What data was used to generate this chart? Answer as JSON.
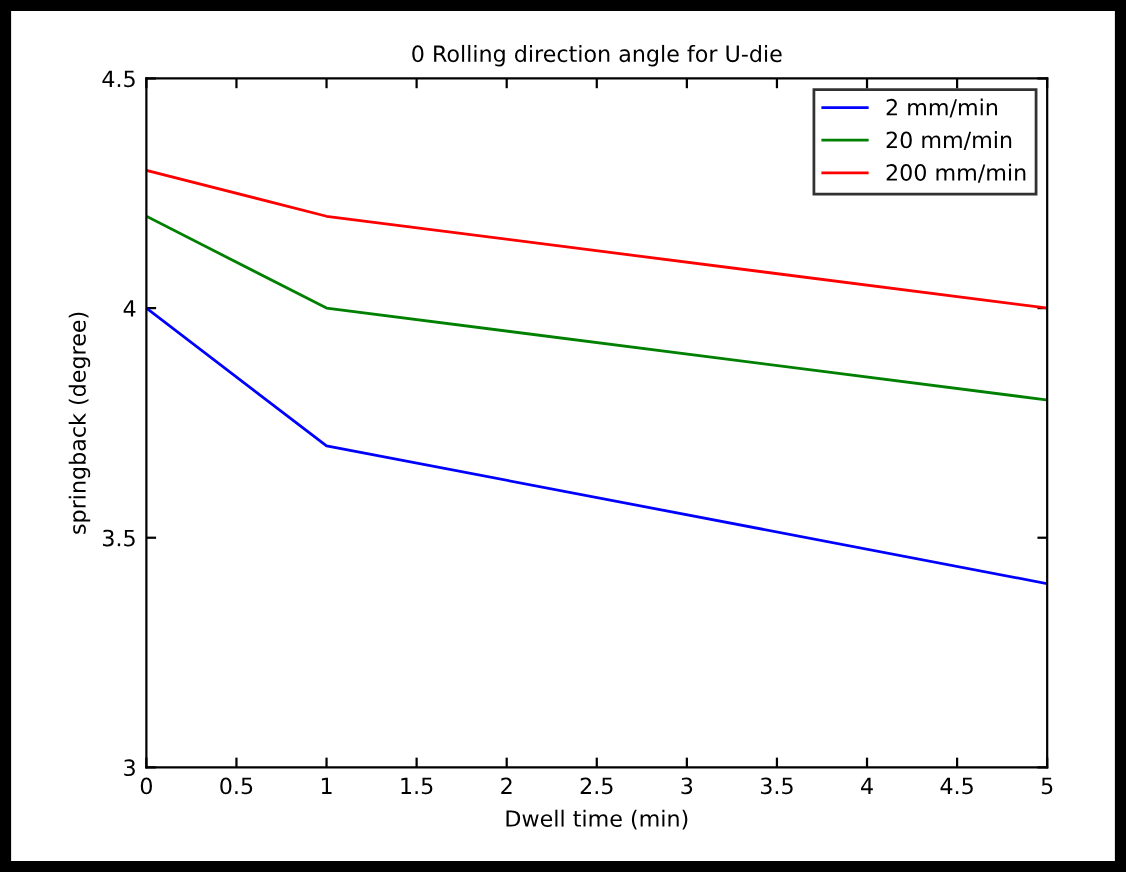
{
  "chart_data": {
    "type": "line",
    "title": "0 Rolling direction angle for U-die",
    "xlabel": "Dwell time (min)",
    "ylabel": "springback (degree)",
    "x": [
      0,
      1,
      5
    ],
    "series": [
      {
        "name": "2 mm/min",
        "color": "#0000ff",
        "values": [
          4.0,
          3.7,
          3.4
        ]
      },
      {
        "name": "20 mm/min",
        "color": "#008000",
        "values": [
          4.2,
          4.0,
          3.8
        ]
      },
      {
        "name": "200 mm/min",
        "color": "#ff0000",
        "values": [
          4.3,
          4.2,
          4.0
        ]
      }
    ],
    "xlim": [
      0,
      5
    ],
    "xticks": [
      0,
      0.5,
      1,
      1.5,
      2,
      2.5,
      3,
      3.5,
      4,
      4.5,
      5
    ],
    "ylim": [
      3,
      4.5
    ],
    "yticks": [
      3,
      3.5,
      4,
      4.5
    ],
    "legend": "top right",
    "grid": false,
    "marker": "none",
    "line_style": "solid"
  }
}
